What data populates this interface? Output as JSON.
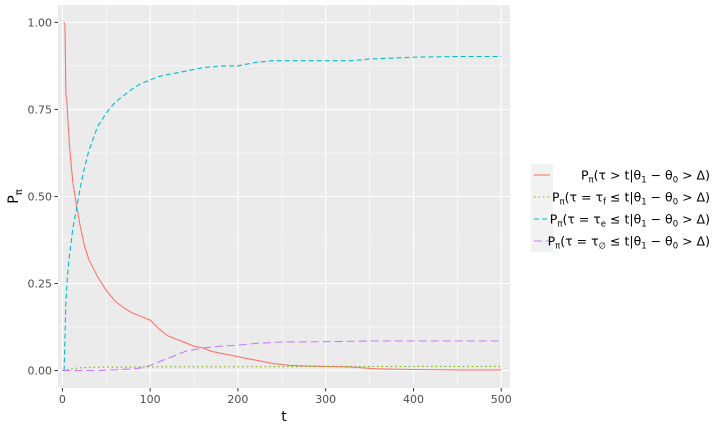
{
  "chart_data": {
    "type": "line",
    "xlabel": "t",
    "ylabel": {
      "main": "P",
      "sub": "π"
    },
    "xlim": [
      -5,
      510
    ],
    "ylim": [
      -0.05,
      1.05
    ],
    "x_ticks": [
      0,
      100,
      200,
      300,
      400,
      500
    ],
    "y_ticks": [
      0.0,
      0.25,
      0.5,
      0.75,
      1.0
    ],
    "x_tick_labels": [
      "0",
      "100",
      "200",
      "300",
      "400",
      "500"
    ],
    "y_tick_labels": [
      "0.00",
      "0.25",
      "0.50",
      "0.75",
      "1.00"
    ],
    "grid": true,
    "legend_position": "right",
    "series": [
      {
        "name": "Pπ(τ > t|θ1 − θ0 > Δ)",
        "color": "#F8766D",
        "dash": "solid",
        "x": [
          2,
          3,
          4,
          5,
          6,
          8,
          10,
          12,
          15,
          20,
          25,
          30,
          40,
          50,
          60,
          70,
          80,
          90,
          100,
          110,
          120,
          130,
          140,
          150,
          160,
          170,
          180,
          200,
          220,
          240,
          260,
          280,
          300,
          330,
          360,
          400,
          450,
          500
        ],
        "y": [
          1.0,
          0.99,
          0.79,
          0.78,
          0.73,
          0.65,
          0.59,
          0.54,
          0.49,
          0.42,
          0.36,
          0.32,
          0.27,
          0.23,
          0.2,
          0.18,
          0.165,
          0.155,
          0.145,
          0.12,
          0.1,
          0.09,
          0.08,
          0.07,
          0.065,
          0.055,
          0.05,
          0.04,
          0.03,
          0.02,
          0.015,
          0.013,
          0.012,
          0.01,
          0.005,
          0.003,
          0.002,
          0.002
        ]
      },
      {
        "name": "Pπ(τ = τf ≤ t|θ1 − θ0 > Δ)",
        "color": "#7CAE00",
        "dash": "dotted",
        "x": [
          0,
          10,
          20,
          40,
          60,
          80,
          100,
          150,
          200,
          300,
          400,
          500
        ],
        "y": [
          0.0,
          0.005,
          0.008,
          0.01,
          0.01,
          0.01,
          0.011,
          0.011,
          0.011,
          0.012,
          0.012,
          0.012
        ]
      },
      {
        "name": "Pπ(τ = τe ≤ t|θ1 − θ0 > Δ)",
        "color": "#00BFC4",
        "dash": "dashed",
        "x": [
          2,
          4,
          6,
          8,
          10,
          12,
          15,
          20,
          25,
          30,
          40,
          50,
          60,
          70,
          80,
          90,
          100,
          110,
          120,
          130,
          140,
          150,
          160,
          180,
          200,
          220,
          240,
          260,
          300,
          330,
          350,
          400,
          450,
          500
        ],
        "y": [
          0.0,
          0.2,
          0.28,
          0.33,
          0.37,
          0.41,
          0.45,
          0.52,
          0.58,
          0.63,
          0.7,
          0.74,
          0.77,
          0.79,
          0.81,
          0.825,
          0.835,
          0.845,
          0.85,
          0.855,
          0.86,
          0.865,
          0.87,
          0.875,
          0.875,
          0.885,
          0.89,
          0.89,
          0.89,
          0.89,
          0.895,
          0.9,
          0.902,
          0.902
        ]
      },
      {
        "name": "Pπ(τ = τ∅ ≤ t|θ1 − θ0 > Δ)",
        "color": "#C77CFF",
        "dash": "longdash",
        "x": [
          0,
          20,
          40,
          60,
          80,
          90,
          100,
          110,
          120,
          130,
          140,
          150,
          160,
          180,
          200,
          220,
          250,
          300,
          350,
          400,
          450,
          500
        ],
        "y": [
          0.0,
          0.0,
          0.0,
          0.002,
          0.005,
          0.008,
          0.015,
          0.025,
          0.035,
          0.045,
          0.055,
          0.06,
          0.065,
          0.07,
          0.073,
          0.078,
          0.082,
          0.083,
          0.085,
          0.085,
          0.085,
          0.085
        ]
      }
    ],
    "legend": [
      {
        "pre": "P",
        "pre_sub": "π",
        "mid": "(τ > t|θ",
        "s1": "1",
        "mid2": " − θ",
        "s2": "0",
        "post": " > Δ)"
      },
      {
        "pre": "P",
        "pre_sub": "π",
        "mid": "(τ = τ",
        "tau_sub": "f",
        "mid_b": " ≤ t|θ",
        "s1": "1",
        "mid2": " − θ",
        "s2": "0",
        "post": " > Δ)"
      },
      {
        "pre": "P",
        "pre_sub": "π",
        "mid": "(τ = τ",
        "tau_sub": "e",
        "mid_b": " ≤ t|θ",
        "s1": "1",
        "mid2": " − θ",
        "s2": "0",
        "post": " > Δ)"
      },
      {
        "pre": "P",
        "pre_sub": "π",
        "mid": "(τ = τ",
        "tau_sub": "∅",
        "mid_b": " ≤ t|θ",
        "s1": "1",
        "mid2": " − θ",
        "s2": "0",
        "post": " > Δ)"
      }
    ]
  }
}
